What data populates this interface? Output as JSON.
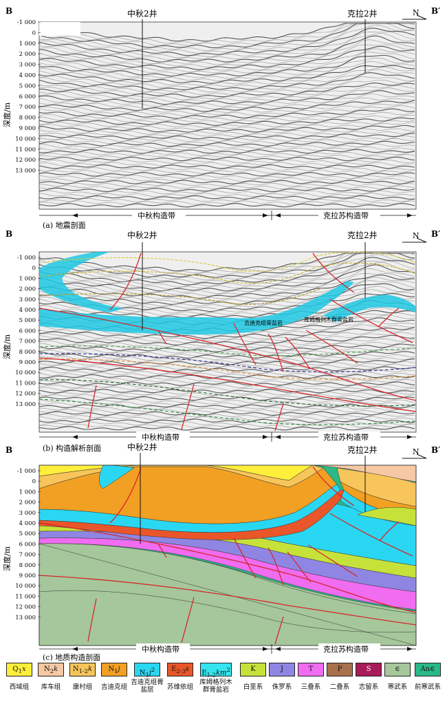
{
  "corner_left": "B",
  "corner_right": "B′",
  "north_mark": "N",
  "well_1": "中秋2井",
  "well_2": "克拉2井",
  "ylabel": "深度/m",
  "depth_ticks": [
    "-1 000",
    "0",
    "1 000",
    "2 000",
    "3 000",
    "4 000",
    "5 000",
    "6 000",
    "7 000",
    "8 000",
    "9 000",
    "10 000",
    "11 000",
    "12 000",
    "13 000"
  ],
  "zone_1": "中秋构造带",
  "zone_2": "克拉苏构造带",
  "captions": {
    "a": "(a)  地震剖面",
    "b": "(b)  构造解析剖面",
    "c": "(c)  地质构造剖面"
  },
  "annotations": {
    "salt_1": "吉迪克组膏盐岩",
    "salt_2": "库姆格列木群膏盐岩"
  },
  "colors": {
    "seismic_bg": "#e9e9e9",
    "salt": "#19c9e6",
    "fault": "#d6262b"
  },
  "legend": [
    {
      "code": "Q1x",
      "label": "西域组",
      "color": "#ffef3a"
    },
    {
      "code": "N2k",
      "label": "库车组",
      "color": "#f6c8a3"
    },
    {
      "code": "N1-2k",
      "label": "康村组",
      "color": "#f7c55a"
    },
    {
      "code": "N1j",
      "label": "吉迪克组",
      "color": "#f2a023"
    },
    {
      "code": "N1j2",
      "label": "吉迪克组膏盐层",
      "color": "#2ad7f3"
    },
    {
      "code": "E2-3s",
      "label": "苏维依组",
      "color": "#e9562a"
    },
    {
      "code": "E1-2km2",
      "label": "库姆格列木群膏盐岩",
      "color": "#34e4ef"
    },
    {
      "code": "K",
      "label": "白垩系",
      "color": "#c6e23a"
    },
    {
      "code": "J",
      "label": "侏罗系",
      "color": "#8f86e4"
    },
    {
      "code": "T",
      "label": "三叠系",
      "color": "#f06cf0"
    },
    {
      "code": "P",
      "label": "二叠系",
      "color": "#a9704c"
    },
    {
      "code": "S",
      "label": "志留系",
      "color": "#a81c5a"
    },
    {
      "code": "∈",
      "label": "寒武系",
      "color": "#a5c79b"
    },
    {
      "code": "An∈",
      "label": "前寒武系",
      "color": "#2bb887"
    }
  ]
}
